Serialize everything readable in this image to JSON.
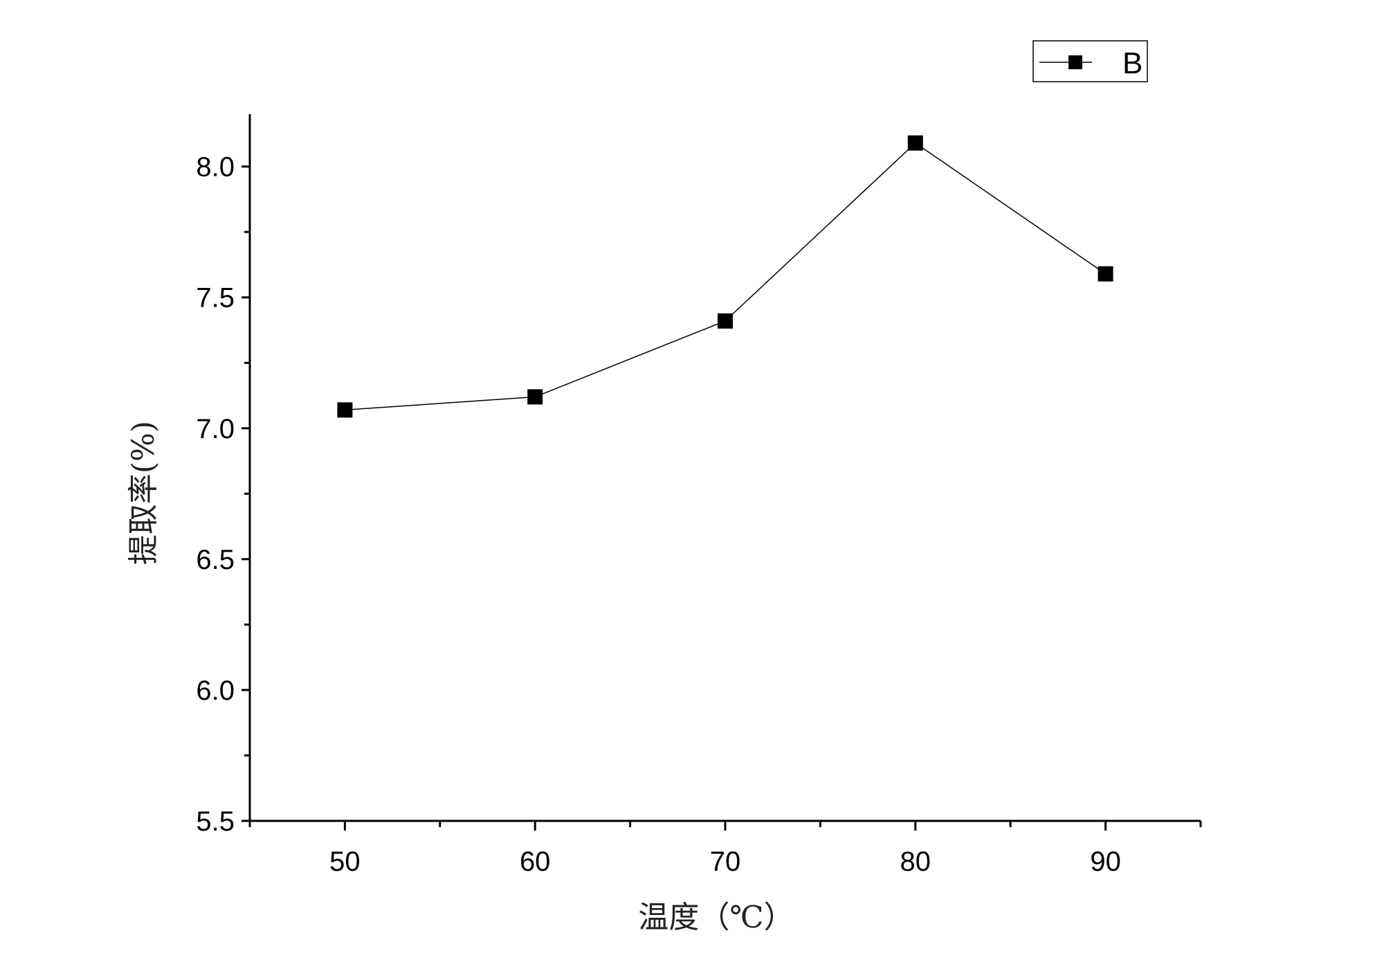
{
  "chart_data": {
    "type": "line",
    "xlabel": "温度（℃）",
    "ylabel": "提取率(%)",
    "xlim": [
      45,
      95
    ],
    "ylim": [
      5.5,
      8.2
    ],
    "xticks": [
      50,
      60,
      70,
      80,
      90
    ],
    "xtick_labels": [
      "50",
      "60",
      "70",
      "80",
      "90"
    ],
    "yticks": [
      5.5,
      6.0,
      6.5,
      7.0,
      7.5,
      8.0
    ],
    "ytick_labels": [
      "5.5",
      "6.0",
      "6.5",
      "7.0",
      "7.5",
      "8.0"
    ],
    "grid": false,
    "legend_position": "top-right",
    "series": [
      {
        "name": "B",
        "color": "#000000",
        "marker": "square",
        "x": [
          50,
          60,
          70,
          80,
          90
        ],
        "y": [
          7.07,
          7.12,
          7.41,
          8.09,
          7.59
        ]
      }
    ]
  }
}
